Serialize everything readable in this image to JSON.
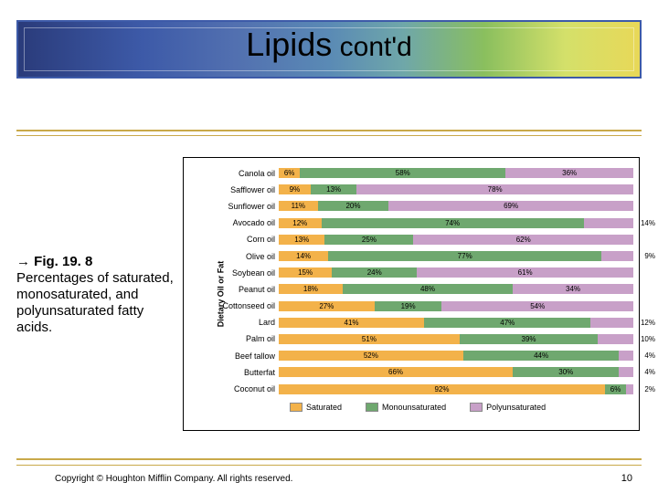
{
  "title": {
    "main": "Lipids",
    "sub": "cont'd"
  },
  "caption": {
    "arrow": "→",
    "fig": "Fig. 19. 8",
    "text": "Percentages of saturated, monosaturated, and polyunsaturated fatty acids."
  },
  "chart": {
    "type": "stacked-bar-horizontal",
    "ylabel": "Dietary Oil or Fat",
    "colors": {
      "saturated": "#f3b24a",
      "mono": "#6fa86f",
      "poly": "#c8a0c8",
      "row_border": "#cccccc"
    },
    "legend": [
      {
        "label": "Saturated",
        "color": "#f3b24a"
      },
      {
        "label": "Monounsaturated",
        "color": "#6fa86f"
      },
      {
        "label": "Polyunsaturated",
        "color": "#c8a0c8"
      }
    ],
    "rows": [
      {
        "label": "Canola oil",
        "sat": 6,
        "mono": 58,
        "poly": 36,
        "show": [
          "6%",
          "58%",
          "36%"
        ],
        "poly_out": false
      },
      {
        "label": "Safflower oil",
        "sat": 9,
        "mono": 13,
        "poly": 78,
        "show": [
          "9%",
          "13%",
          "78%"
        ],
        "poly_out": false
      },
      {
        "label": "Sunflower oil",
        "sat": 11,
        "mono": 20,
        "poly": 69,
        "show": [
          "11%",
          "20%",
          "69%"
        ],
        "poly_out": false
      },
      {
        "label": "Avocado oil",
        "sat": 12,
        "mono": 74,
        "poly": 14,
        "show": [
          "12%",
          "74%",
          "14%"
        ],
        "poly_out": true
      },
      {
        "label": "Corn oil",
        "sat": 13,
        "mono": 25,
        "poly": 62,
        "show": [
          "13%",
          "25%",
          "62%"
        ],
        "poly_out": false
      },
      {
        "label": "Olive oil",
        "sat": 14,
        "mono": 77,
        "poly": 9,
        "show": [
          "14%",
          "77%",
          "9%"
        ],
        "poly_out": true
      },
      {
        "label": "Soybean oil",
        "sat": 15,
        "mono": 24,
        "poly": 61,
        "show": [
          "15%",
          "24%",
          "61%"
        ],
        "poly_out": false
      },
      {
        "label": "Peanut oil",
        "sat": 18,
        "mono": 48,
        "poly": 34,
        "show": [
          "18%",
          "48%",
          "34%"
        ],
        "poly_out": false
      },
      {
        "label": "Cottonseed oil",
        "sat": 27,
        "mono": 19,
        "poly": 54,
        "show": [
          "27%",
          "19%",
          "54%"
        ],
        "poly_out": false
      },
      {
        "label": "Lard",
        "sat": 41,
        "mono": 47,
        "poly": 12,
        "show": [
          "41%",
          "47%",
          "12%"
        ],
        "poly_out": true
      },
      {
        "label": "Palm oil",
        "sat": 51,
        "mono": 39,
        "poly": 10,
        "show": [
          "51%",
          "39%",
          "10%"
        ],
        "poly_out": true
      },
      {
        "label": "Beef tallow",
        "sat": 52,
        "mono": 44,
        "poly": 4,
        "show": [
          "52%",
          "44%",
          "4%"
        ],
        "poly_out": true
      },
      {
        "label": "Butterfat",
        "sat": 66,
        "mono": 30,
        "poly": 4,
        "show": [
          "66%",
          "30%",
          "4%"
        ],
        "poly_out": true
      },
      {
        "label": "Coconut oil",
        "sat": 92,
        "mono": 6,
        "poly": 2,
        "show": [
          "92%",
          "6%",
          "2%"
        ],
        "poly_out": true
      }
    ]
  },
  "footer": {
    "copyright": "Copyright © Houghton Mifflin Company. All rights reserved.",
    "page": "10"
  }
}
